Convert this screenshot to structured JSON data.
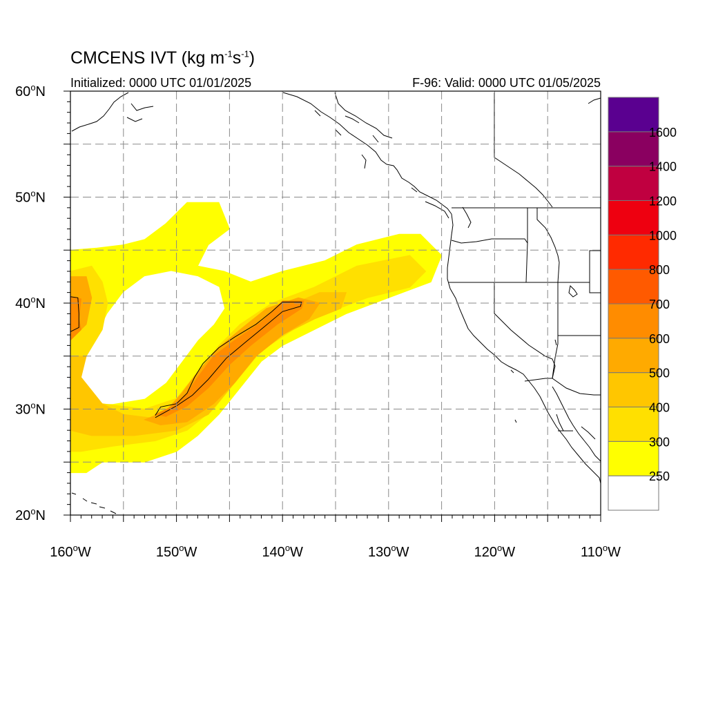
{
  "title": {
    "main": "CMCENS IVT (kg m",
    "exp1": "-1",
    "mid": "s",
    "exp2": "-1",
    "end": ")"
  },
  "initialized": "Initialized: 0000 UTC 01/01/2025",
  "valid": "F-96: Valid: 0000 UTC 01/05/2025",
  "map": {
    "lon_range": [
      -160,
      -110
    ],
    "lat_range": [
      20,
      60
    ],
    "grid_lon_step": 5,
    "grid_lat_step": 5,
    "lat_tick_labels": [
      {
        "lat": 60,
        "deg": "60",
        "hem": "N"
      },
      {
        "lat": 50,
        "deg": "50",
        "hem": "N"
      },
      {
        "lat": 40,
        "deg": "40",
        "hem": "N"
      },
      {
        "lat": 30,
        "deg": "30",
        "hem": "N"
      },
      {
        "lat": 20,
        "deg": "20",
        "hem": "N"
      }
    ],
    "lon_tick_labels": [
      {
        "lon": -160,
        "deg": "160",
        "hem": "W"
      },
      {
        "lon": -150,
        "deg": "150",
        "hem": "W"
      },
      {
        "lon": -140,
        "deg": "140",
        "hem": "W"
      },
      {
        "lon": -130,
        "deg": "130",
        "hem": "W"
      },
      {
        "lon": -120,
        "deg": "120",
        "hem": "W"
      },
      {
        "lon": -110,
        "deg": "110",
        "hem": "W"
      }
    ]
  },
  "colorbar": {
    "labels": [
      "250",
      "300",
      "400",
      "500",
      "600",
      "700",
      "800",
      "1000",
      "1200",
      "1400",
      "1600"
    ],
    "colors": [
      "#ffffff",
      "#ffff00",
      "#ffe000",
      "#ffc600",
      "#ffaa00",
      "#ff8c00",
      "#ff5a00",
      "#ff2a00",
      "#ee0010",
      "#c00040",
      "#8a0060",
      "#5a0090"
    ]
  },
  "ivt_regions": [
    {
      "level": 1,
      "color": "#ffff00",
      "points": [
        [
          -160,
          45
        ],
        [
          -157.5,
          45.2
        ],
        [
          -155,
          45.5
        ],
        [
          -153,
          46
        ],
        [
          -151,
          47.5
        ],
        [
          -149,
          49.5
        ],
        [
          -146,
          49.5
        ],
        [
          -145,
          47
        ],
        [
          -147,
          45.5
        ],
        [
          -148,
          43.5
        ],
        [
          -145.5,
          43
        ],
        [
          -143,
          42
        ],
        [
          -140,
          43
        ],
        [
          -136,
          44
        ],
        [
          -133,
          45.5
        ],
        [
          -129,
          46.5
        ],
        [
          -127,
          46.5
        ],
        [
          -125,
          44.5
        ],
        [
          -126,
          42
        ],
        [
          -130,
          40.5
        ],
        [
          -134,
          39
        ],
        [
          -137,
          37.5
        ],
        [
          -140,
          36
        ],
        [
          -142,
          34.5
        ],
        [
          -144,
          32
        ],
        [
          -146,
          29.5
        ],
        [
          -148,
          27.5
        ],
        [
          -150,
          26
        ],
        [
          -153,
          25
        ],
        [
          -157,
          25
        ],
        [
          -158.5,
          24
        ],
        [
          -160,
          24
        ]
      ]
    },
    {
      "level": 1,
      "color": "#ffffff",
      "points": [
        [
          -158.5,
          30.5
        ],
        [
          -156,
          30.5
        ],
        [
          -153,
          31
        ],
        [
          -151,
          32.5
        ],
        [
          -149.5,
          34.5
        ],
        [
          -148,
          36.5
        ],
        [
          -146.5,
          38
        ],
        [
          -145.5,
          39.5
        ],
        [
          -146,
          41.5
        ],
        [
          -148,
          42.5
        ],
        [
          -150.5,
          43
        ],
        [
          -153,
          42.5
        ],
        [
          -155,
          41
        ],
        [
          -156.5,
          39
        ],
        [
          -157.5,
          37
        ],
        [
          -158.5,
          35
        ],
        [
          -159,
          33
        ]
      ]
    },
    {
      "level": 2,
      "color": "#ffe000",
      "points": [
        [
          -160,
          43
        ],
        [
          -158,
          43.5
        ],
        [
          -157,
          42
        ],
        [
          -156.5,
          40
        ],
        [
          -157,
          37.5
        ],
        [
          -158.5,
          35
        ],
        [
          -159.5,
          32
        ],
        [
          -157,
          30.5
        ],
        [
          -153,
          30
        ],
        [
          -150,
          31
        ],
        [
          -148,
          33.5
        ],
        [
          -146,
          36
        ],
        [
          -144,
          38
        ],
        [
          -141,
          40
        ],
        [
          -137,
          41.5
        ],
        [
          -133,
          43.5
        ],
        [
          -128,
          44.5
        ],
        [
          -126.5,
          43
        ],
        [
          -128,
          41.5
        ],
        [
          -132,
          40.5
        ],
        [
          -136,
          39
        ],
        [
          -139,
          37.5
        ],
        [
          -142,
          35.5
        ],
        [
          -144.5,
          32.5
        ],
        [
          -146.5,
          30
        ],
        [
          -149,
          28
        ],
        [
          -152,
          27
        ],
        [
          -156,
          26.5
        ],
        [
          -159,
          26
        ],
        [
          -160,
          26
        ]
      ]
    },
    {
      "level": 3,
      "color": "#ffc600",
      "points": [
        [
          -160,
          35
        ],
        [
          -158.5,
          35
        ],
        [
          -159,
          33
        ],
        [
          -157,
          30.5
        ],
        [
          -155,
          29.5
        ],
        [
          -151,
          29
        ],
        [
          -149,
          31
        ],
        [
          -147.5,
          33
        ],
        [
          -145.5,
          35.5
        ],
        [
          -143,
          37.5
        ],
        [
          -140,
          39.5
        ],
        [
          -136.5,
          41
        ],
        [
          -134,
          41
        ],
        [
          -134.5,
          39.5
        ],
        [
          -137,
          38.5
        ],
        [
          -140,
          37
        ],
        [
          -142.5,
          35
        ],
        [
          -144.5,
          32.5
        ],
        [
          -147,
          29.5
        ],
        [
          -150,
          28
        ],
        [
          -154,
          27.5
        ],
        [
          -158,
          27.5
        ],
        [
          -160,
          28
        ]
      ]
    },
    {
      "level": 4,
      "color": "#ffaa00",
      "points": [
        [
          -160,
          42.5
        ],
        [
          -158.5,
          42.5
        ],
        [
          -158,
          40.5
        ],
        [
          -158.5,
          38
        ],
        [
          -160,
          36.5
        ]
      ]
    },
    {
      "level": 4,
      "color": "#ffaa00",
      "points": [
        [
          -153,
          29
        ],
        [
          -151,
          29.8
        ],
        [
          -149.5,
          31.5
        ],
        [
          -148,
          33.5
        ],
        [
          -146,
          35.8
        ],
        [
          -144,
          37.5
        ],
        [
          -141.5,
          39.5
        ],
        [
          -138.5,
          40.5
        ],
        [
          -136.5,
          40
        ],
        [
          -137.5,
          38.5
        ],
        [
          -140,
          37
        ],
        [
          -142.5,
          35
        ],
        [
          -144.5,
          32.5
        ],
        [
          -146.5,
          30.5
        ],
        [
          -149,
          28.8
        ],
        [
          -151.5,
          28.5
        ]
      ]
    },
    {
      "level": 5,
      "color": "#ff8c00",
      "points": [
        [
          -160,
          40.6
        ],
        [
          -159,
          40.4
        ],
        [
          -159.2,
          38.5
        ],
        [
          -159,
          37.5
        ],
        [
          -160,
          36.5
        ]
      ]
    },
    {
      "level": 5,
      "color": "#ff8c00",
      "points": [
        [
          -152,
          29.5
        ],
        [
          -150.5,
          30.2
        ],
        [
          -149,
          31.5
        ],
        [
          -148,
          33
        ],
        [
          -146.5,
          35
        ],
        [
          -144.5,
          36.5
        ],
        [
          -142,
          38.2
        ],
        [
          -140,
          40.2
        ],
        [
          -138,
          40.2
        ],
        [
          -138.2,
          39.5
        ],
        [
          -140.5,
          38
        ],
        [
          -143,
          36
        ],
        [
          -145,
          34.2
        ],
        [
          -147,
          32
        ],
        [
          -149,
          30.3
        ],
        [
          -151,
          29.3
        ]
      ]
    }
  ],
  "ivt_contours": [
    {
      "level": 600,
      "points": [
        [
          -160,
          40.6
        ],
        [
          -159.3,
          40.5
        ],
        [
          -159.2,
          39
        ],
        [
          -159.2,
          37.7
        ],
        [
          -160,
          37.3
        ]
      ]
    },
    {
      "level": 600,
      "points": [
        [
          -152,
          29.4
        ],
        [
          -151.5,
          30.2
        ],
        [
          -150,
          30.5
        ],
        [
          -149,
          31.5
        ],
        [
          -148.3,
          33
        ],
        [
          -147.5,
          34.3
        ],
        [
          -146,
          35.8
        ],
        [
          -144.5,
          36.8
        ],
        [
          -142.5,
          38
        ],
        [
          -141,
          39.2
        ],
        [
          -140,
          40.1
        ],
        [
          -138.2,
          40.1
        ],
        [
          -138.3,
          39.7
        ],
        [
          -140,
          39.2
        ],
        [
          -141.8,
          37.7
        ],
        [
          -143.5,
          36.3
        ],
        [
          -145.3,
          34.8
        ],
        [
          -147,
          32.8
        ],
        [
          -148.5,
          31.3
        ],
        [
          -150,
          30.3
        ],
        [
          -152,
          29.2
        ]
      ]
    }
  ]
}
